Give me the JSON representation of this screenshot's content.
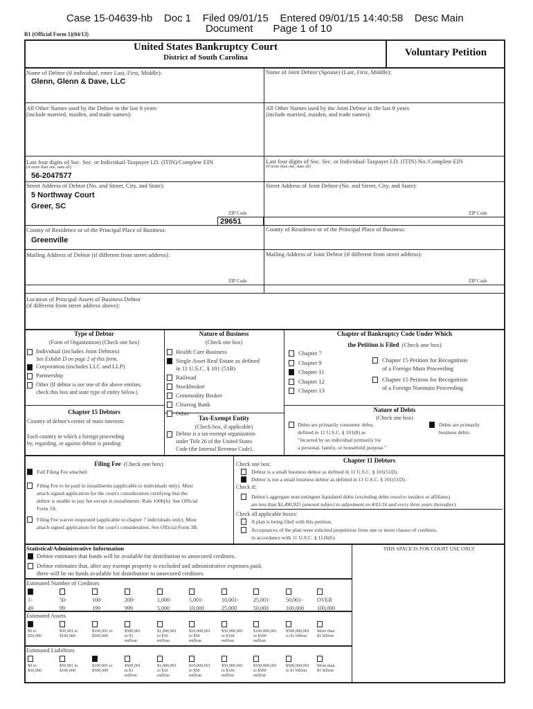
{
  "header": {
    "line1": "Case 15-04639-hb    Doc 1    Filed 09/01/15    Entered 09/01/15 14:40:58    Desc Main",
    "line2": "Document       Page 1 of 10",
    "form_id": "B1 (Official Form 1)(04/13)"
  },
  "title": {
    "court": "United States Bankruptcy Court",
    "district": "District of South Carolina",
    "petition": "Voluntary Petition"
  },
  "debtor": {
    "name_label": "Name of Debtor (if individual, enter Last, First, Middle):",
    "name": "Glenn, Glenn & Dave, LLC",
    "other_names_label1": "All Other Names used by the Debtor in the last 8 years",
    "other_names_label2": "(include married, maiden, and trade names):",
    "ssn_label": "Last four digits of Soc. Sec. or Individual-Taxpayer I.D. (ITIN)/Complete EIN",
    "ssn_sub": "(if more than one, state all)",
    "ein": "56-2047577",
    "street_label": "Street Address of Debtor (No. and Street, City, and State):",
    "street1": "5 Northway Court",
    "street2": "Greer, SC",
    "zip_label": "ZIP Code",
    "zip": "29651",
    "county_label": "County of Residence or of the Principal Place of Business:",
    "county": "Greenville",
    "mailing_label": "Mailing Address of Debtor (if different from street address):",
    "mailing_zip_label": "ZIP Code"
  },
  "joint": {
    "name_label": "Name of Joint Debtor (Spouse) (Last, First, Middle):",
    "other_names_label1": "All Other Names used by the Joint Debtor in the last 8 years",
    "other_names_label2": "(include married, maiden, and trade names):",
    "ssn_label": "Last four digits of Soc. Sec. or Individual-Taxpayer I.D. (ITIN) No./Complete EIN",
    "ssn_sub": "(if more than one, state all)",
    "street_label": "Street Address of Joint Debtor (No. and Street, City, and State):",
    "zip_label": "ZIP Code",
    "county_label": "County of Residence or of the Principal Place of Business:",
    "mailing_label": "Mailing Address of Joint Debtor (if different from street address):",
    "mailing_zip_label": "ZIP Code"
  },
  "location": {
    "label1": "Location of Principal Assets of Business Debtor",
    "label2": "(if different from street address above):"
  },
  "type_of_debtor": {
    "title": "Type of Debtor",
    "sub": "(Form of Organization)  (Check one box)",
    "individual": "Individual (includes Joint Debtors)",
    "individual_note": "See Exhibit D on page 2 of this form.",
    "individual_checked": false,
    "corporation": "Corporation (includes LLC and LLP)",
    "corporation_checked": true,
    "partnership": "Partnership",
    "partnership_checked": false,
    "other1": "Other (If debtor is not one of the above entities,",
    "other2": "check this box and state type of entity below.)",
    "other_checked": false
  },
  "nature_of_business": {
    "title": "Nature of Business",
    "sub": "(Check one box)",
    "items": [
      {
        "l1": "Health Care Business",
        "checked": false
      },
      {
        "l1": "Single Asset Real Estate as defined",
        "l2": "in 11 U.S.C. § 101 (51B)",
        "checked": true
      },
      {
        "l1": "Railroad",
        "checked": false
      },
      {
        "l1": "Stockbroker",
        "checked": false
      },
      {
        "l1": "Commodity Broker",
        "checked": false
      },
      {
        "l1": "Clearing Bank",
        "checked": false
      },
      {
        "l1": "Other",
        "checked": false
      }
    ]
  },
  "chapter": {
    "title1": "Chapter of Bankruptcy Code Under Which",
    "title2": "the Petition is Filed",
    "sub": "(Check one box)",
    "items": [
      {
        "label": "Chapter 7",
        "checked": false
      },
      {
        "label": "Chapter 9",
        "checked": false
      },
      {
        "label": "Chapter 11",
        "checked": true
      },
      {
        "label": "Chapter 12",
        "checked": false
      },
      {
        "label": "Chapter 13",
        "checked": false
      }
    ],
    "ch15_main1": "Chapter 15 Petition for Recognition",
    "ch15_main2": "of a Foreign Main Proceeding",
    "ch15_main_checked": false,
    "ch15_nonmain1": "Chapter 15 Petition for Recognition",
    "ch15_nonmain2": "of a Foreign Nonmain Proceeding",
    "ch15_nonmain_checked": false
  },
  "chapter15_debtors": {
    "title": "Chapter 15 Debtors",
    "country_label": "Country of debtor's center of main interests:",
    "each1": "Each country in which a foreign proceeding",
    "each2": "by, regarding, or against debtor is pending:"
  },
  "tax_exempt": {
    "title": "Tax-Exempt Entity",
    "sub": "(Check box, if applicable)",
    "l1": "Debtor is a tax-exempt organization",
    "l2": "under Title 26 of the United States",
    "l3": "Code (the Internal Revenue Code).",
    "checked": false
  },
  "nature_of_debts": {
    "title": "Nature of Debts",
    "sub": "(Check one box)",
    "consumer1": "Debts are primarily consumer debts,",
    "consumer2": "defined in 11 U.S.C. § 101(8) as",
    "consumer3": "\"incurred by an individual primarily for",
    "consumer4": "a personal, family, or household purpose.\"",
    "consumer_checked": false,
    "business1": "Debts are primarily",
    "business2": "business debts.",
    "business_checked": true
  },
  "filing_fee": {
    "title": "Filing Fee",
    "sub": "(Check one box)",
    "full": "Full Filing Fee attached",
    "full_checked": true,
    "inst1": "Filing Fee to be paid in installments (applicable to individuals only). Must",
    "inst2": "attach signed application for the court's consideration certifying that the",
    "inst3": "debtor is unable to pay fee except in installments. Rule 1006(b). See Official",
    "inst4": "Form 3A.",
    "inst_checked": false,
    "waiver1": "Filing Fee waiver requested (applicable to chapter 7 individuals only). Must",
    "waiver2": "attach signed application for the court's consideration. See Official Form 3B.",
    "waiver_checked": false
  },
  "ch11_debtors": {
    "title": "Chapter 11 Debtors",
    "check_one": "Check one box:",
    "small": "Debtor is a small business debtor as defined in 11 U.S.C. § 101(51D).",
    "small_checked": false,
    "not_small": "Debtor is not a small business debtor as defined in 11 U.S.C. § 101(51D).",
    "not_small_checked": true,
    "check_if": "Check if:",
    "agg1": "Debtor's aggregate noncontingent liquidated debts (excluding debts owed to insiders or affiliates)",
    "agg2": "are less than $2,490,925",
    "agg2_italic": "(amount subject to adjustment on 4/01/16 and every three years thereafter).",
    "agg_checked": false,
    "check_all": "Check all applicable boxes:",
    "plan": "A plan is being filed with this petition.",
    "plan_checked": false,
    "accept1": "Acceptances of the plan were solicited prepetition from one or more classes of creditors,",
    "accept2": "in accordance with 11 U.S.C. § 1126(b).",
    "accept_checked": false
  },
  "statistical": {
    "title": "Statistical/Administrative Information",
    "funds": "Debtor estimates that funds will be available for distribution to unsecured creditors.",
    "funds_checked": true,
    "nofunds1": "Debtor estimates that, after any exempt property is excluded and administrative expenses paid,",
    "nofunds2": "there will be no funds available for distribution to unsecured creditors.",
    "nofunds_checked": false,
    "court_use": "THIS SPACE IS FOR COURT USE ONLY"
  },
  "estimates": [
    {
      "title": "Estimated Number of Creditors",
      "big": true,
      "selected": 0,
      "options": [
        [
          "1-",
          "49"
        ],
        [
          "50-",
          "99"
        ],
        [
          "100-",
          "199"
        ],
        [
          "200-",
          "999"
        ],
        [
          "1,000-",
          "5,000"
        ],
        [
          "5,001-",
          "10,000"
        ],
        [
          "10,001-",
          "25,000"
        ],
        [
          "25,001-",
          "50,000"
        ],
        [
          "50,001-",
          "100,000"
        ],
        [
          "OVER",
          "100,000"
        ]
      ]
    },
    {
      "title": "Estimated Assets",
      "big": false,
      "selected": 0,
      "options": [
        [
          "$0 to",
          "$50,000"
        ],
        [
          "$50,001 to",
          "$100,000"
        ],
        [
          "$100,001 to",
          "$500,000"
        ],
        [
          "$500,001",
          "to $1",
          "million"
        ],
        [
          "$1,000,001",
          "to $10",
          "million"
        ],
        [
          "$10,000,001",
          "to $50",
          "million"
        ],
        [
          "$50,000,001",
          "to $100",
          "million"
        ],
        [
          "$100,000,001",
          "to $500",
          "million"
        ],
        [
          "$500,000,001",
          "to $1 billion"
        ],
        [
          "More than",
          "$1 billion"
        ]
      ]
    },
    {
      "title": "Estimated Liabilities",
      "big": false,
      "selected": 2,
      "options": [
        [
          "$0 to",
          "$50,000"
        ],
        [
          "$50,001 to",
          "$100,000"
        ],
        [
          "$100,001 to",
          "$500,000"
        ],
        [
          "$500,001",
          "to $1",
          "million"
        ],
        [
          "$1,000,001",
          "to $10",
          "million"
        ],
        [
          "$10,000,001",
          "to $50",
          "million"
        ],
        [
          "$50,000,001",
          "to $100",
          "million"
        ],
        [
          "$100,000,001",
          "to $500",
          "million"
        ],
        [
          "$500,000,001",
          "to $1 billion"
        ],
        [
          "More than",
          "$1 billion"
        ]
      ]
    }
  ]
}
